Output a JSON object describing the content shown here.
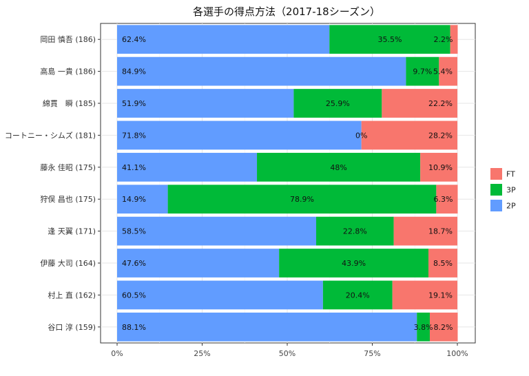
{
  "chart_data": {
    "type": "bar",
    "orientation": "horizontal",
    "stacked": true,
    "title": "各選手の得点方法（2017-18シーズン）",
    "xlabel": "",
    "ylabel": "",
    "xlim": [
      0,
      100
    ],
    "x_ticks": [
      "0%",
      "25%",
      "50%",
      "75%",
      "100%"
    ],
    "grid": true,
    "legend_position": "right",
    "categories": [
      "岡田 慎吾 (186)",
      "高島 一貴 (186)",
      "綿貫　瞬 (185)",
      "コートニー・シムズ (181)",
      "藤永 佳昭 (175)",
      "狩俣 昌也 (175)",
      "逢 天翼 (171)",
      "伊藤 大司 (164)",
      "村上 直 (162)",
      "谷口 淳 (159)"
    ],
    "series": [
      {
        "name": "2P",
        "color": "#619CFF",
        "values": [
          62.4,
          84.9,
          51.9,
          71.8,
          41.1,
          14.9,
          58.5,
          47.6,
          60.5,
          88.1
        ],
        "labels": [
          "62.4%",
          "84.9%",
          "51.9%",
          "71.8%",
          "41.1%",
          "14.9%",
          "58.5%",
          "47.6%",
          "60.5%",
          "88.1%"
        ]
      },
      {
        "name": "3P",
        "color": "#00BA38",
        "values": [
          35.5,
          9.7,
          25.9,
          0,
          48,
          78.9,
          22.8,
          43.9,
          20.4,
          3.8
        ],
        "labels": [
          "35.5%",
          "9.7%",
          "25.9%",
          "0%",
          "48%",
          "78.9%",
          "22.8%",
          "43.9%",
          "20.4%",
          "3.8%"
        ]
      },
      {
        "name": "FT",
        "color": "#F8766D",
        "values": [
          2.2,
          5.4,
          22.2,
          28.2,
          10.9,
          6.3,
          18.7,
          8.5,
          19.1,
          8.2
        ],
        "labels": [
          "2.2%",
          "5.4%",
          "22.2%",
          "28.2%",
          "10.9%",
          "6.3%",
          "18.7%",
          "8.5%",
          "19.1%",
          "8.2%"
        ]
      }
    ],
    "legend_order": [
      "FT",
      "3P",
      "2P"
    ]
  }
}
